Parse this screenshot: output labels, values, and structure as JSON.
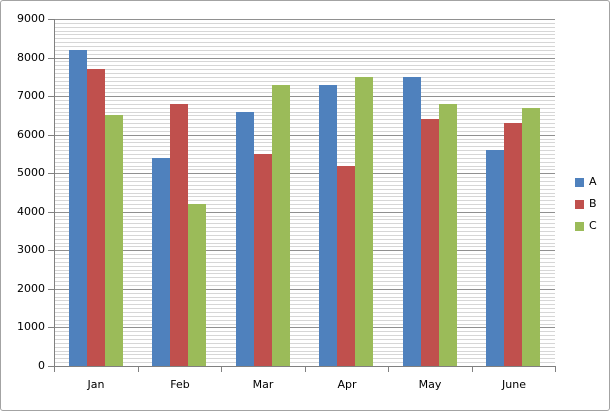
{
  "chart_data": {
    "type": "bar",
    "title": "",
    "xlabel": "",
    "ylabel": "",
    "categories": [
      "Jan",
      "Feb",
      "Mar",
      "Apr",
      "May",
      "June"
    ],
    "series": [
      {
        "name": "A",
        "color": "#4F81BD",
        "values": [
          8200,
          5400,
          6600,
          7300,
          7500,
          5600
        ]
      },
      {
        "name": "B",
        "color": "#C0504D",
        "values": [
          7700,
          6800,
          5500,
          5200,
          6400,
          6300
        ]
      },
      {
        "name": "C",
        "color": "#9BBB59",
        "values": [
          6500,
          4200,
          7300,
          7500,
          6800,
          6700
        ]
      }
    ],
    "ylim": [
      0,
      9000
    ],
    "y_major_step": 1000,
    "y_minor_step": 100,
    "y_tick_labels": [
      "0",
      "1000",
      "2000",
      "3000",
      "4000",
      "5000",
      "6000",
      "7000",
      "8000",
      "9000"
    ],
    "grid": "major+minor horizontal",
    "legend_position": "right"
  },
  "colors": {
    "background": "#ffffff",
    "chart_border": "#a3a3a3",
    "axis_line": "#808080",
    "minor_gridline": "#d6d6d6",
    "major_gridline": "#909090",
    "label_text": "#000000"
  }
}
